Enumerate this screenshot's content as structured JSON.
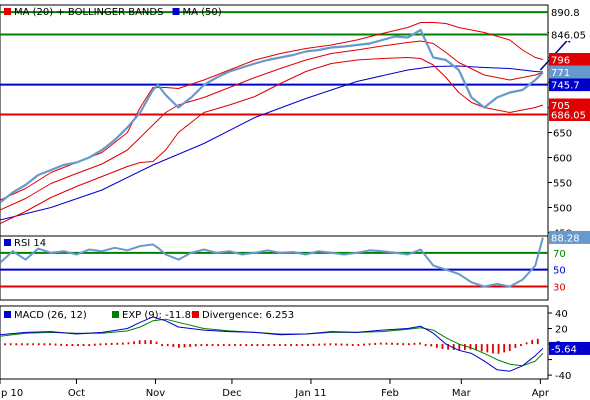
{
  "colors": {
    "price": "#6699cc",
    "boll": "#e00000",
    "ma50": "#0000cc",
    "green_level": "#008000",
    "blue_level": "#0000cc",
    "red_level": "#e00000",
    "rsi": "#6699cc",
    "macd": "#0000cc",
    "signal": "#008000",
    "divergence": "#e00000",
    "arrow": "#000080"
  },
  "chart_data": [
    {
      "type": "line",
      "panel": "price",
      "legend": [
        {
          "label": "MA (20) + BOLLINGER BANDS",
          "color": "#e00000"
        },
        {
          "label": "MA (50)",
          "color": "#0000cc"
        }
      ],
      "y_ticks": [
        450,
        500,
        550,
        600,
        650,
        700,
        750,
        800,
        850
      ],
      "ylim": [
        443,
        905
      ],
      "x_months": [
        "p 10",
        "Oct",
        "Nov",
        "Dec",
        "Jan 11",
        "Feb",
        "Mar",
        "Apr"
      ],
      "x_month_days": [
        0,
        30,
        61,
        91,
        122,
        153,
        181,
        212
      ],
      "x_range": [
        0,
        215
      ],
      "levels": [
        {
          "value": 890.8,
          "label": "890.8",
          "color": "green"
        },
        {
          "value": 846.05,
          "label": "846.05",
          "color": "green"
        },
        {
          "value": 745.7,
          "label": "745.7",
          "color": "blue"
        },
        {
          "value": 686.05,
          "label": "686.05",
          "color": "red"
        }
      ],
      "value_tags": [
        {
          "value": 796,
          "label": "796",
          "color": "red"
        },
        {
          "value": 771,
          "label": "771",
          "color": "blue"
        },
        {
          "value": 705,
          "label": "705",
          "color": "red"
        }
      ],
      "arrow": {
        "from": [
          212,
          775
        ],
        "to": [
          225,
          845
        ]
      },
      "series": [
        {
          "name": "Price",
          "x": [
            0,
            5,
            10,
            15,
            20,
            25,
            30,
            35,
            40,
            45,
            50,
            55,
            60,
            62,
            65,
            70,
            75,
            80,
            85,
            90,
            95,
            100,
            105,
            110,
            115,
            120,
            125,
            130,
            135,
            140,
            145,
            150,
            155,
            160,
            165,
            170,
            175,
            180,
            185,
            190,
            195,
            200,
            205,
            210,
            213
          ],
          "y": [
            510,
            530,
            545,
            565,
            575,
            585,
            590,
            600,
            615,
            635,
            660,
            690,
            735,
            745,
            725,
            700,
            720,
            745,
            760,
            772,
            780,
            788,
            795,
            800,
            805,
            812,
            815,
            820,
            822,
            825,
            828,
            835,
            842,
            840,
            855,
            800,
            795,
            775,
            720,
            700,
            720,
            730,
            735,
            755,
            770
          ]
        },
        {
          "name": "MA (20)",
          "x": [
            0,
            10,
            20,
            30,
            40,
            50,
            55,
            60,
            65,
            70,
            80,
            90,
            100,
            110,
            120,
            130,
            140,
            150,
            160,
            165,
            170,
            175,
            180,
            190,
            200,
            210,
            213
          ],
          "y": [
            495,
            518,
            548,
            568,
            587,
            615,
            640,
            665,
            690,
            705,
            720,
            740,
            760,
            778,
            795,
            808,
            815,
            823,
            830,
            833,
            828,
            810,
            790,
            765,
            755,
            765,
            770
          ]
        },
        {
          "name": "Upper band",
          "x": [
            0,
            10,
            20,
            30,
            40,
            50,
            55,
            60,
            65,
            70,
            80,
            90,
            100,
            110,
            120,
            130,
            140,
            150,
            160,
            165,
            170,
            175,
            180,
            190,
            200,
            205,
            210,
            213
          ],
          "y": [
            515,
            538,
            570,
            590,
            610,
            650,
            700,
            740,
            740,
            738,
            755,
            775,
            795,
            808,
            818,
            825,
            835,
            848,
            860,
            870,
            870,
            868,
            860,
            850,
            835,
            815,
            800,
            796
          ]
        },
        {
          "name": "Lower band",
          "x": [
            0,
            10,
            20,
            30,
            40,
            50,
            55,
            60,
            65,
            70,
            80,
            90,
            100,
            110,
            120,
            130,
            140,
            150,
            160,
            165,
            170,
            175,
            180,
            185,
            190,
            200,
            210,
            213
          ],
          "y": [
            468,
            492,
            520,
            542,
            562,
            582,
            590,
            592,
            615,
            650,
            690,
            705,
            722,
            748,
            772,
            788,
            795,
            798,
            800,
            798,
            785,
            760,
            730,
            710,
            700,
            690,
            700,
            705
          ]
        },
        {
          "name": "MA (50)",
          "x": [
            0,
            20,
            40,
            60,
            80,
            100,
            120,
            140,
            160,
            170,
            180,
            190,
            200,
            210,
            213
          ],
          "y": [
            475,
            500,
            535,
            585,
            628,
            680,
            718,
            752,
            775,
            782,
            783,
            780,
            778,
            772,
            771
          ]
        }
      ]
    },
    {
      "type": "line",
      "panel": "rsi",
      "legend": [
        {
          "label": "RSI 14",
          "color": "#6699cc"
        }
      ],
      "ylim": [
        14,
        90
      ],
      "levels": [
        {
          "value": 70,
          "label": "70",
          "color": "green"
        },
        {
          "value": 50,
          "label": "50",
          "color": "blue"
        },
        {
          "value": 30,
          "label": "30",
          "color": "red"
        }
      ],
      "current": {
        "value": 88.28,
        "label": "88.28"
      },
      "series": [
        {
          "name": "RSI 14",
          "x": [
            0,
            5,
            10,
            15,
            20,
            25,
            30,
            35,
            40,
            45,
            50,
            55,
            60,
            62,
            65,
            70,
            75,
            80,
            85,
            90,
            95,
            100,
            105,
            110,
            115,
            120,
            125,
            130,
            135,
            140,
            145,
            150,
            155,
            160,
            165,
            170,
            175,
            180,
            185,
            190,
            195,
            200,
            205,
            210,
            213
          ],
          "y": [
            58,
            72,
            62,
            75,
            70,
            72,
            68,
            74,
            72,
            76,
            73,
            78,
            80,
            76,
            68,
            62,
            70,
            74,
            70,
            72,
            68,
            70,
            73,
            70,
            71,
            68,
            72,
            70,
            68,
            70,
            73,
            72,
            70,
            68,
            74,
            55,
            50,
            45,
            35,
            30,
            33,
            30,
            38,
            55,
            88
          ]
        }
      ]
    },
    {
      "type": "line",
      "panel": "macd",
      "legend": [
        {
          "label": "MACD (26, 12)",
          "color": "#0000cc"
        },
        {
          "label": "EXP (9): -11.89",
          "color": "#008000"
        },
        {
          "label": "Divergence: 6.253",
          "color": "#e00000"
        }
      ],
      "y_ticks": [
        40,
        20,
        0,
        -20,
        -40
      ],
      "ylim": [
        -45,
        49
      ],
      "current": {
        "value": -5.64,
        "label": "-5.64"
      },
      "series": [
        {
          "name": "MACD (26, 12)",
          "x": [
            0,
            10,
            20,
            30,
            40,
            50,
            55,
            60,
            65,
            70,
            80,
            90,
            100,
            110,
            120,
            130,
            140,
            150,
            160,
            165,
            170,
            175,
            180,
            185,
            190,
            195,
            200,
            205,
            210,
            213
          ],
          "y": [
            12,
            15,
            16,
            13,
            15,
            20,
            28,
            35,
            30,
            22,
            18,
            16,
            15,
            12,
            13,
            16,
            15,
            18,
            20,
            23,
            14,
            0,
            -8,
            -12,
            -22,
            -33,
            -35,
            -28,
            -15,
            -5.64
          ]
        },
        {
          "name": "EXP (9)",
          "x": [
            0,
            10,
            20,
            30,
            40,
            50,
            55,
            60,
            65,
            70,
            80,
            90,
            100,
            110,
            120,
            130,
            140,
            150,
            160,
            165,
            170,
            175,
            180,
            185,
            190,
            195,
            200,
            205,
            210,
            213
          ],
          "y": [
            10,
            14,
            15,
            14,
            14,
            17,
            22,
            30,
            32,
            28,
            20,
            17,
            15,
            13,
            13,
            15,
            15,
            16,
            19,
            21,
            18,
            8,
            0,
            -5,
            -12,
            -20,
            -26,
            -28,
            -22,
            -11.89
          ]
        },
        {
          "name": "Divergence",
          "x": [
            0,
            10,
            20,
            30,
            40,
            50,
            55,
            60,
            65,
            70,
            80,
            90,
            100,
            110,
            120,
            130,
            140,
            150,
            160,
            165,
            170,
            175,
            180,
            185,
            190,
            195,
            200,
            205,
            210,
            213
          ],
          "y": [
            1,
            1,
            1,
            -1,
            1,
            2,
            5,
            5,
            -2,
            -5,
            -2,
            -1,
            0,
            -1,
            0,
            1,
            0,
            2,
            1,
            2,
            -4,
            -7,
            -8,
            -7,
            -10,
            -13,
            -9,
            0,
            7,
            6.253
          ]
        }
      ]
    }
  ]
}
